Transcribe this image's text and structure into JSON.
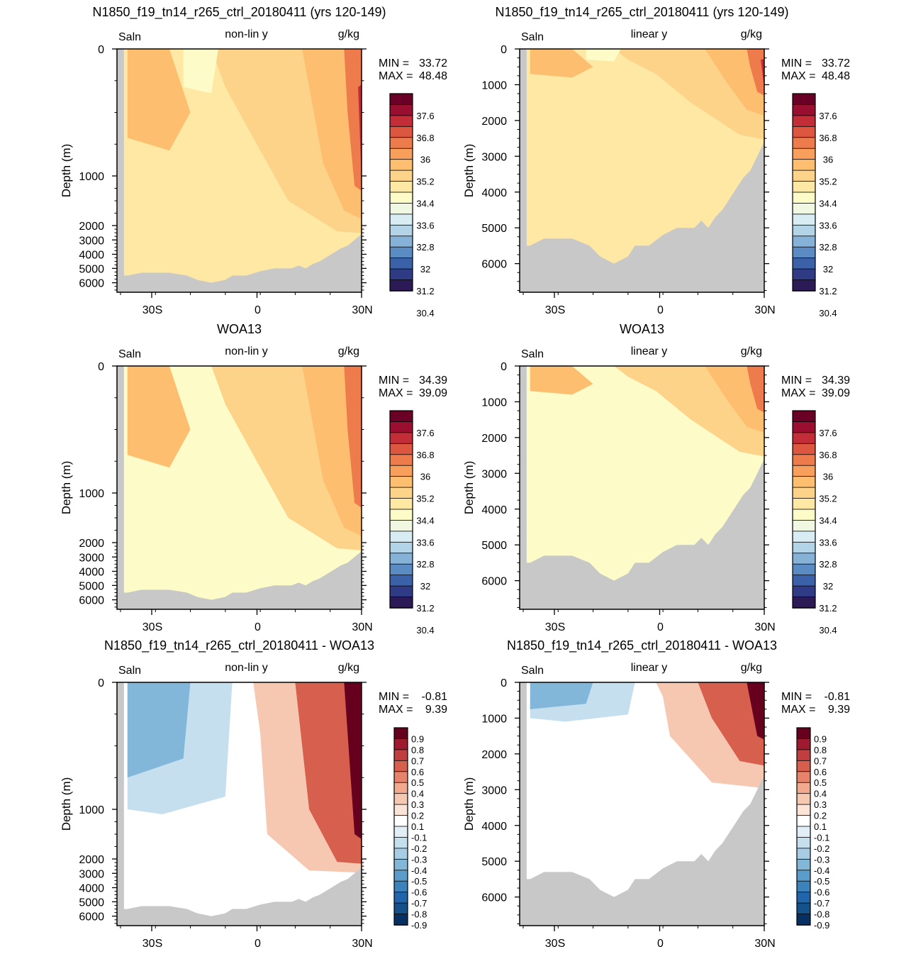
{
  "panels": [
    {
      "title": "N1850_f19_tn14_r265_ctrl_20180411 (yrs 120-149)",
      "left_label": "Saln",
      "center_label": "non-lin y",
      "right_label": "g/kg",
      "min_label": "MIN =",
      "min_value": "33.72",
      "max_label": "MAX =",
      "max_value": "48.48",
      "ylabel": "Depth (m)",
      "y_scale": "non-linear",
      "y_ticks": [
        "0",
        "1000",
        "2000",
        "3000",
        "4000",
        "5000",
        "6000"
      ],
      "x_ticks": [
        "30S",
        "0",
        "30N"
      ],
      "colorbar_labels": [
        "37.6",
        "36.8",
        "36",
        "35.2",
        "34.4",
        "33.6",
        "32.8",
        "32",
        "31.2",
        "30.4"
      ],
      "field": "model"
    },
    {
      "title": "N1850_f19_tn14_r265_ctrl_20180411 (yrs 120-149)",
      "left_label": "Saln",
      "center_label": "linear y",
      "right_label": "g/kg",
      "min_label": "MIN =",
      "min_value": "33.72",
      "max_label": "MAX =",
      "max_value": "48.48",
      "ylabel": "Depth (m)",
      "y_scale": "linear",
      "y_ticks": [
        "0",
        "1000",
        "2000",
        "3000",
        "4000",
        "5000",
        "6000"
      ],
      "x_ticks": [
        "30S",
        "0",
        "30N"
      ],
      "colorbar_labels": [
        "37.6",
        "36.8",
        "36",
        "35.2",
        "34.4",
        "33.6",
        "32.8",
        "32",
        "31.2",
        "30.4"
      ],
      "field": "model"
    },
    {
      "title": "WOA13",
      "left_label": "Saln",
      "center_label": "non-lin y",
      "right_label": "g/kg",
      "min_label": "MIN =",
      "min_value": "34.39",
      "max_label": "MAX =",
      "max_value": "39.09",
      "ylabel": "Depth (m)",
      "y_scale": "non-linear",
      "y_ticks": [
        "0",
        "1000",
        "2000",
        "3000",
        "4000",
        "5000",
        "6000"
      ],
      "x_ticks": [
        "30S",
        "0",
        "30N"
      ],
      "colorbar_labels": [
        "37.6",
        "36.8",
        "36",
        "35.2",
        "34.4",
        "33.6",
        "32.8",
        "32",
        "31.2",
        "30.4"
      ],
      "field": "obs"
    },
    {
      "title": "WOA13",
      "left_label": "Saln",
      "center_label": "linear y",
      "right_label": "g/kg",
      "min_label": "MIN =",
      "min_value": "34.39",
      "max_label": "MAX =",
      "max_value": "39.09",
      "ylabel": "Depth (m)",
      "y_scale": "linear",
      "y_ticks": [
        "0",
        "1000",
        "2000",
        "3000",
        "4000",
        "5000",
        "6000"
      ],
      "x_ticks": [
        "30S",
        "0",
        "30N"
      ],
      "colorbar_labels": [
        "37.6",
        "36.8",
        "36",
        "35.2",
        "34.4",
        "33.6",
        "32.8",
        "32",
        "31.2",
        "30.4"
      ],
      "field": "obs"
    },
    {
      "title": "N1850_f19_tn14_r265_ctrl_20180411 - WOA13",
      "left_label": "Saln",
      "center_label": "non-lin y",
      "right_label": "g/kg",
      "min_label": "MIN =",
      "min_value": "-0.81",
      "max_label": "MAX =",
      "max_value": "9.39",
      "ylabel": "Depth (m)",
      "y_scale": "non-linear",
      "y_ticks": [
        "0",
        "1000",
        "2000",
        "3000",
        "4000",
        "5000",
        "6000"
      ],
      "x_ticks": [
        "30S",
        "0",
        "30N"
      ],
      "colorbar_labels": [
        "0.9",
        "0.8",
        "0.7",
        "0.6",
        "0.5",
        "0.4",
        "0.3",
        "0.2",
        "0.1",
        "-0.1",
        "-0.2",
        "-0.3",
        "-0.4",
        "-0.5",
        "-0.6",
        "-0.7",
        "-0.8",
        "-0.9"
      ],
      "field": "diff"
    },
    {
      "title": "N1850_f19_tn14_r265_ctrl_20180411 - WOA13",
      "left_label": "Saln",
      "center_label": "linear y",
      "right_label": "g/kg",
      "min_label": "MIN =",
      "min_value": "-0.81",
      "max_label": "MAX =",
      "max_value": "9.39",
      "ylabel": "Depth (m)",
      "y_scale": "linear",
      "y_ticks": [
        "0",
        "1000",
        "2000",
        "3000",
        "4000",
        "5000",
        "6000"
      ],
      "x_ticks": [
        "30S",
        "0",
        "30N"
      ],
      "colorbar_labels": [
        "0.9",
        "0.8",
        "0.7",
        "0.6",
        "0.5",
        "0.4",
        "0.3",
        "0.2",
        "0.1",
        "-0.1",
        "-0.2",
        "-0.3",
        "-0.4",
        "-0.5",
        "-0.6",
        "-0.7",
        "-0.8",
        "-0.9"
      ],
      "field": "diff"
    }
  ],
  "colors": {
    "land": "#c8c8c8",
    "saln_scale": [
      "#2b1a55",
      "#2f3c85",
      "#3b62a8",
      "#5a8cc3",
      "#86b2d7",
      "#b3d3e6",
      "#d8ecf3",
      "#f0f8e2",
      "#fdfbc8",
      "#fee8a3",
      "#fdd38a",
      "#fdbe70",
      "#f99f5c",
      "#ee7b4c",
      "#dc5640",
      "#c22d37",
      "#9a0f30",
      "#6b0027"
    ],
    "diff_scale": [
      "#053061",
      "#14508a",
      "#2166ac",
      "#3a83bd",
      "#5a9dcb",
      "#82b7d9",
      "#a6cde4",
      "#c6dfee",
      "#e1eef6",
      "#ffffff",
      "#fbe3d6",
      "#f7c8b1",
      "#f2a98d",
      "#e8836b",
      "#d6604d",
      "#c03e3e",
      "#a01a2f",
      "#67001f"
    ]
  },
  "chart_data": [
    {
      "type": "heatmap",
      "title": "N1850_f19_tn14_r265_ctrl_20180411 (yrs 120-149)",
      "variable": "Saln",
      "units": "g/kg",
      "ylabel": "Depth (m)",
      "y_scale": "non-linear",
      "x_range": [
        "30S",
        "30N"
      ],
      "y_range": [
        6000,
        0
      ],
      "min": 33.72,
      "max": 48.48,
      "levels": [
        30.4,
        31.2,
        32,
        32.8,
        33.6,
        34.4,
        35.2,
        36,
        36.8,
        37.6
      ]
    },
    {
      "type": "heatmap",
      "title": "N1850_f19_tn14_r265_ctrl_20180411 (yrs 120-149)",
      "variable": "Saln",
      "units": "g/kg",
      "ylabel": "Depth (m)",
      "y_scale": "linear",
      "x_range": [
        "30S",
        "30N"
      ],
      "y_range": [
        6000,
        0
      ],
      "min": 33.72,
      "max": 48.48,
      "levels": [
        30.4,
        31.2,
        32,
        32.8,
        33.6,
        34.4,
        35.2,
        36,
        36.8,
        37.6
      ]
    },
    {
      "type": "heatmap",
      "title": "WOA13",
      "variable": "Saln",
      "units": "g/kg",
      "ylabel": "Depth (m)",
      "y_scale": "non-linear",
      "x_range": [
        "30S",
        "30N"
      ],
      "y_range": [
        6000,
        0
      ],
      "min": 34.39,
      "max": 39.09,
      "levels": [
        30.4,
        31.2,
        32,
        32.8,
        33.6,
        34.4,
        35.2,
        36,
        36.8,
        37.6
      ]
    },
    {
      "type": "heatmap",
      "title": "WOA13",
      "variable": "Saln",
      "units": "g/kg",
      "ylabel": "Depth (m)",
      "y_scale": "linear",
      "x_range": [
        "30S",
        "30N"
      ],
      "y_range": [
        6000,
        0
      ],
      "min": 34.39,
      "max": 39.09,
      "levels": [
        30.4,
        31.2,
        32,
        32.8,
        33.6,
        34.4,
        35.2,
        36,
        36.8,
        37.6
      ]
    },
    {
      "type": "heatmap",
      "title": "N1850_f19_tn14_r265_ctrl_20180411 - WOA13",
      "variable": "Saln",
      "units": "g/kg",
      "ylabel": "Depth (m)",
      "y_scale": "non-linear",
      "x_range": [
        "30S",
        "30N"
      ],
      "y_range": [
        6000,
        0
      ],
      "min": -0.81,
      "max": 9.39,
      "levels": [
        -0.9,
        -0.8,
        -0.7,
        -0.6,
        -0.5,
        -0.4,
        -0.3,
        -0.2,
        -0.1,
        0.1,
        0.2,
        0.3,
        0.4,
        0.5,
        0.6,
        0.7,
        0.8,
        0.9
      ]
    },
    {
      "type": "heatmap",
      "title": "N1850_f19_tn14_r265_ctrl_20180411 - WOA13",
      "variable": "Saln",
      "units": "g/kg",
      "ylabel": "Depth (m)",
      "y_scale": "linear",
      "x_range": [
        "30S",
        "30N"
      ],
      "y_range": [
        6000,
        0
      ],
      "min": -0.81,
      "max": 9.39,
      "levels": [
        -0.9,
        -0.8,
        -0.7,
        -0.6,
        -0.5,
        -0.4,
        -0.3,
        -0.2,
        -0.1,
        0.1,
        0.2,
        0.3,
        0.4,
        0.5,
        0.6,
        0.7,
        0.8,
        0.9
      ]
    }
  ]
}
